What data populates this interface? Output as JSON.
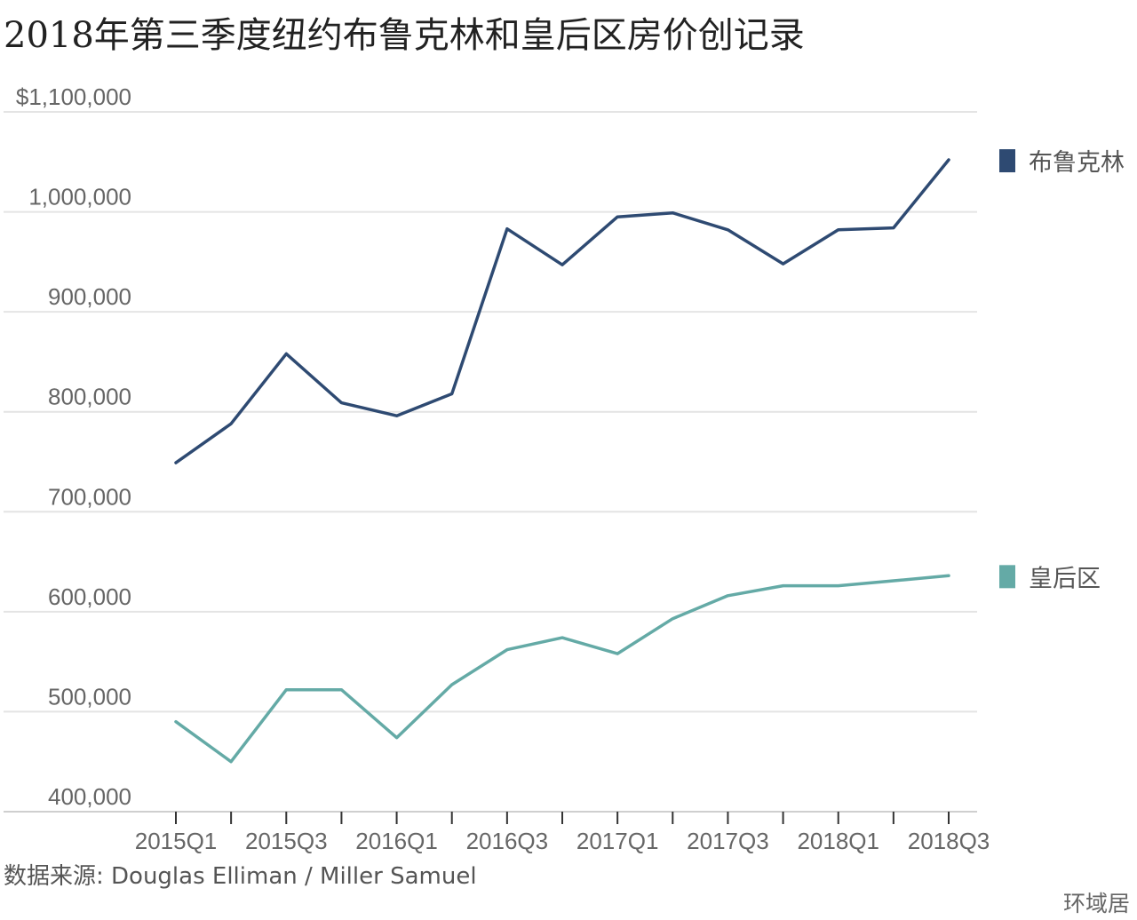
{
  "title": "2018年第三季度纽约布鲁克林和皇后区房价创记录",
  "source": "数据来源: Douglas Elliman / Miller Samuel",
  "brand": "环域居",
  "chart_data": {
    "type": "line",
    "title": "2018年第三季度纽约布鲁克林和皇后区房价创记录",
    "xlabel": "",
    "ylabel": "",
    "ylim": [
      400000,
      1100000
    ],
    "grid": true,
    "legend_position": "right, beside line ends",
    "x": [
      "2015Q1",
      "2015Q2",
      "2015Q3",
      "2015Q4",
      "2016Q1",
      "2016Q2",
      "2016Q3",
      "2016Q4",
      "2017Q1",
      "2017Q2",
      "2017Q3",
      "2017Q4",
      "2018Q1",
      "2018Q2",
      "2018Q3"
    ],
    "x_tick_labels": [
      "2015Q1",
      "2015Q3",
      "2016Q1",
      "2016Q3",
      "2017Q1",
      "2017Q3",
      "2018Q1",
      "2018Q3"
    ],
    "y_tick_labels": [
      "$1,100,000",
      "1,000,000",
      "900,000",
      "800,000",
      "700,000",
      "600,000",
      "500,000",
      "400,000"
    ],
    "y_ticks": [
      1100000,
      1000000,
      900000,
      800000,
      700000,
      600000,
      500000,
      400000
    ],
    "series": [
      {
        "name": "布鲁克林",
        "color": "#2e4a72",
        "values": [
          749000,
          788000,
          858000,
          809000,
          796000,
          818000,
          983000,
          947000,
          995000,
          999000,
          982000,
          948000,
          982000,
          984000,
          1052000
        ]
      },
      {
        "name": "皇后区",
        "color": "#64aaa6",
        "values": [
          490000,
          450000,
          522000,
          522000,
          474000,
          527000,
          562000,
          574000,
          558000,
          593000,
          616000,
          626000,
          626000,
          631000,
          636000
        ]
      }
    ]
  }
}
